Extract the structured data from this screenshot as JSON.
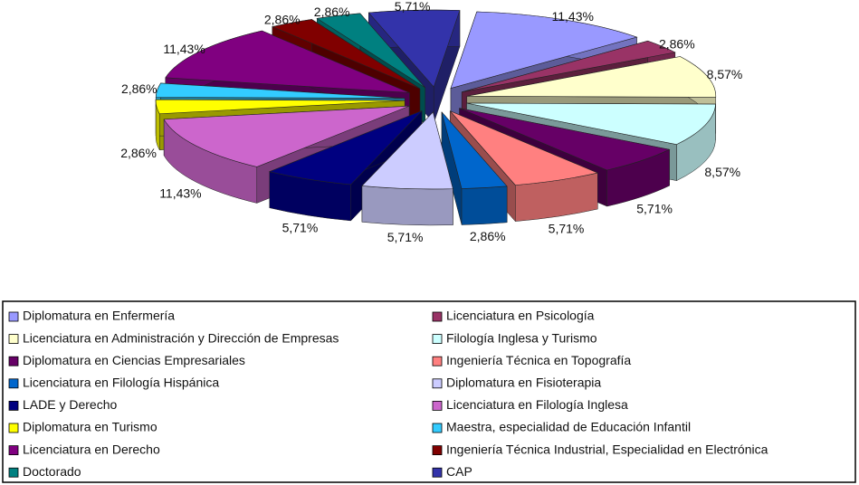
{
  "chart_data": {
    "type": "pie",
    "categories": [
      "Diplomatura en Enfermería",
      "Licenciatura en Psicología",
      "Licenciatura en Administración y Dirección de Empresas",
      "Filología Inglesa y Turismo",
      "Diplomatura en Ciencias Empresariales",
      "Ingeniería Técnica en Topografía",
      "Licenciatura en Filología Hispánica",
      "Diplomatura en Fisioterapia",
      "LADE y Derecho",
      "Licenciatura en Filología Inglesa",
      "Diplomatura en Turismo",
      "Maestra, especialidad de Educación Infantil",
      "Licenciatura en Derecho",
      "Ingeniería Técnica Industrial, Especialidad en Electrónica",
      "Doctorado",
      "CAP"
    ],
    "values": [
      11.43,
      2.86,
      8.57,
      8.57,
      5.71,
      5.71,
      2.86,
      5.71,
      5.71,
      11.43,
      2.86,
      2.86,
      11.43,
      2.86,
      2.86,
      5.71
    ],
    "value_labels": [
      "11,43%",
      "2,86%",
      "8,57%",
      "8,57%",
      "5,71%",
      "5,71%",
      "2,86%",
      "5,71%",
      "5,71%",
      "11,43%",
      "2,86%",
      "2,86%",
      "11,43%",
      "2,86%",
      "2,86%",
      "5,71%"
    ],
    "colors": [
      "#9999ff",
      "#993366",
      "#ffffcc",
      "#ccffff",
      "#660066",
      "#ff8080",
      "#0066cc",
      "#ccccff",
      "#000080",
      "#cc66cc",
      "#ffff00",
      "#33ccff",
      "#800080",
      "#800000",
      "#008080",
      "#3333aa"
    ],
    "legend": "bottom"
  }
}
